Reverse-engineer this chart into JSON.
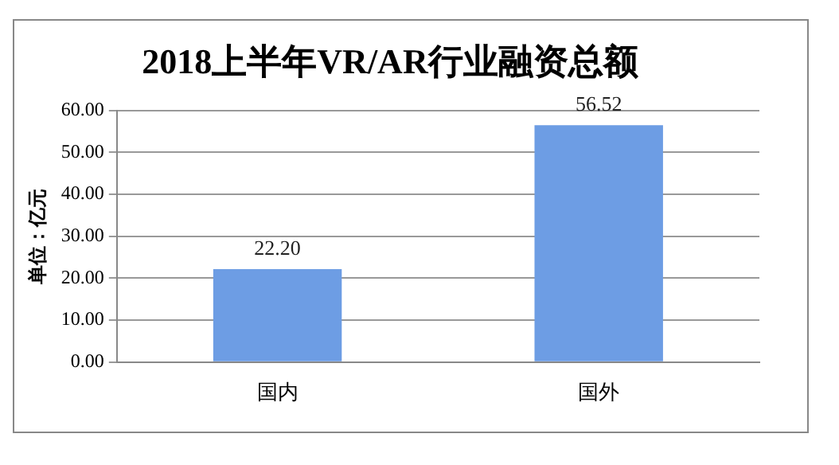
{
  "chart_data": {
    "type": "bar",
    "title": "2018上半年VR/AR行业融资总额",
    "ylabel": "单位：亿元",
    "categories": [
      "国内",
      "国外"
    ],
    "values": [
      22.2,
      56.52
    ],
    "value_labels": [
      "22.20",
      "56.52"
    ],
    "color": "#6d9de4",
    "ylim": [
      0,
      60
    ],
    "yticks": [
      {
        "value": 0,
        "label": "0.00"
      },
      {
        "value": 10,
        "label": "10.00"
      },
      {
        "value": 20,
        "label": "20.00"
      },
      {
        "value": 30,
        "label": "30.00"
      },
      {
        "value": 40,
        "label": "40.00"
      },
      {
        "value": 50,
        "label": "50.00"
      },
      {
        "value": 60,
        "label": "60.00"
      }
    ],
    "grid": "y",
    "legend": false
  }
}
